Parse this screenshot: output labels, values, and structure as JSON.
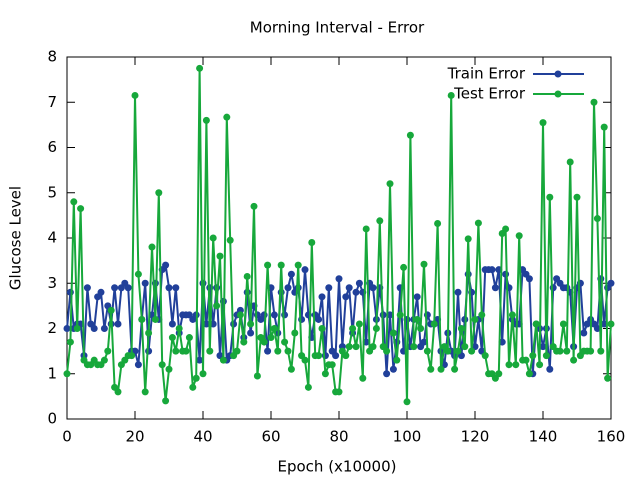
{
  "chart_data": {
    "type": "line",
    "title": "Morning Interval - Error",
    "xlabel": "Epoch (x10000)",
    "ylabel": "Glucose Level",
    "x": [
      0,
      1,
      2,
      3,
      4,
      5,
      6,
      7,
      8,
      9,
      10,
      11,
      12,
      13,
      14,
      15,
      16,
      17,
      18,
      19,
      20,
      21,
      22,
      23,
      24,
      25,
      26,
      27,
      28,
      29,
      30,
      31,
      32,
      33,
      34,
      35,
      36,
      37,
      38,
      39,
      40,
      41,
      42,
      43,
      44,
      45,
      46,
      47,
      48,
      49,
      50,
      51,
      52,
      53,
      54,
      55,
      56,
      57,
      58,
      59,
      60,
      61,
      62,
      63,
      64,
      65,
      66,
      67,
      68,
      69,
      70,
      71,
      72,
      73,
      74,
      75,
      76,
      77,
      78,
      79,
      80,
      81,
      82,
      83,
      84,
      85,
      86,
      87,
      88,
      89,
      90,
      91,
      92,
      93,
      94,
      95,
      96,
      97,
      98,
      99,
      100,
      101,
      102,
      103,
      104,
      105,
      106,
      107,
      108,
      109,
      110,
      111,
      112,
      113,
      114,
      115,
      116,
      117,
      118,
      119,
      120,
      121,
      122,
      123,
      124,
      125,
      126,
      127,
      128,
      129,
      130,
      131,
      132,
      133,
      134,
      135,
      136,
      137,
      138,
      139,
      140,
      141,
      142,
      143,
      144,
      145,
      146,
      147,
      148,
      149,
      150,
      151,
      152,
      153,
      154,
      155,
      156,
      157,
      158,
      159,
      160
    ],
    "series": [
      {
        "name": "Train Error",
        "color": "#21409a",
        "values": [
          2.0,
          2.8,
          2.0,
          2.1,
          2.1,
          1.4,
          2.9,
          2.1,
          2.0,
          2.7,
          2.8,
          2.0,
          2.5,
          2.1,
          2.9,
          2.1,
          2.9,
          3.0,
          2.9,
          1.5,
          1.5,
          1.2,
          2.2,
          3.0,
          1.5,
          2.3,
          3.0,
          2.2,
          3.3,
          3.4,
          2.9,
          2.1,
          2.9,
          1.9,
          2.3,
          2.3,
          2.3,
          2.2,
          2.3,
          1.3,
          3.0,
          2.1,
          2.9,
          2.1,
          2.9,
          1.4,
          2.6,
          1.3,
          1.4,
          2.1,
          2.3,
          2.4,
          1.8,
          2.8,
          1.9,
          2.5,
          2.3,
          2.2,
          2.3,
          1.5,
          2.9,
          2.3,
          1.9,
          2.8,
          2.3,
          2.9,
          3.2,
          2.8,
          2.9,
          2.2,
          3.3,
          2.3,
          1.8,
          2.3,
          2.2,
          2.7,
          1.4,
          2.9,
          1.5,
          1.4,
          3.1,
          1.6,
          2.7,
          2.9,
          1.9,
          2.8,
          3.0,
          2.8,
          1.7,
          3.0,
          2.9,
          2.2,
          2.9,
          2.3,
          1.0,
          2.3,
          1.1,
          1.7,
          2.9,
          1.5,
          2.2,
          1.6,
          2.2,
          2.7,
          1.6,
          1.7,
          2.3,
          2.1,
          2.1,
          2.2,
          1.5,
          1.2,
          1.9,
          1.5,
          1.4,
          2.8,
          1.4,
          2.2,
          3.2,
          2.8,
          1.6,
          2.2,
          1.5,
          3.3,
          3.3,
          3.3,
          2.9,
          3.3,
          1.7,
          3.2,
          2.9,
          2.2,
          2.1,
          2.1,
          3.3,
          3.2,
          3.1,
          1.0,
          2.1,
          2.0,
          1.6,
          2.0,
          1.1,
          2.9,
          3.1,
          3.0,
          2.9,
          2.9,
          2.8,
          1.6,
          2.9,
          3.0,
          1.9,
          2.1,
          2.2,
          2.1,
          2.0,
          3.1,
          2.1,
          2.9,
          3.0
        ]
      },
      {
        "name": "Test Error",
        "color": "#17a83b",
        "values": [
          1.0,
          1.7,
          4.8,
          2.0,
          4.65,
          1.3,
          1.2,
          1.2,
          1.3,
          1.2,
          1.2,
          1.3,
          1.5,
          2.4,
          0.7,
          0.6,
          1.2,
          1.3,
          1.4,
          1.4,
          7.15,
          3.2,
          2.2,
          0.6,
          1.9,
          3.8,
          2.2,
          5.0,
          1.2,
          0.4,
          1.1,
          1.8,
          1.5,
          2.0,
          1.5,
          1.5,
          1.8,
          0.7,
          0.9,
          7.75,
          1.0,
          6.6,
          1.5,
          4.0,
          2.5,
          3.6,
          1.3,
          6.67,
          3.95,
          1.4,
          1.5,
          2.3,
          1.7,
          3.15,
          2.1,
          4.7,
          0.95,
          1.8,
          1.7,
          3.4,
          1.8,
          2.0,
          1.5,
          3.4,
          1.7,
          1.5,
          1.1,
          1.9,
          3.4,
          1.4,
          1.3,
          0.7,
          3.9,
          1.4,
          1.4,
          2.0,
          1.0,
          1.2,
          1.2,
          0.6,
          0.6,
          1.5,
          1.4,
          1.6,
          2.0,
          1.6,
          2.1,
          0.9,
          4.2,
          1.5,
          1.6,
          2.0,
          4.38,
          1.6,
          1.5,
          5.2,
          1.9,
          1.3,
          2.3,
          3.35,
          0.38,
          6.27,
          1.6,
          2.2,
          2.0,
          3.42,
          1.5,
          1.1,
          2.1,
          4.32,
          1.1,
          1.6,
          1.5,
          7.15,
          1.1,
          1.5,
          2.0,
          1.6,
          3.98,
          1.5,
          2.2,
          4.33,
          2.3,
          1.4,
          1.0,
          1.0,
          0.9,
          1.0,
          4.1,
          4.2,
          1.2,
          2.3,
          1.2,
          4.05,
          1.3,
          1.3,
          1.0,
          1.4,
          2.1,
          1.2,
          6.55,
          1.4,
          4.9,
          1.6,
          1.5,
          1.5,
          2.1,
          1.5,
          5.68,
          1.3,
          4.9,
          1.4,
          1.5,
          1.5,
          1.5,
          7.0,
          4.43,
          1.5,
          6.45,
          0.9,
          2.1
        ]
      }
    ],
    "xlim": [
      0,
      160
    ],
    "xticks": [
      0,
      20,
      40,
      60,
      80,
      100,
      120,
      140,
      160
    ],
    "ylim": [
      0,
      8
    ],
    "yticks": [
      0,
      1,
      2,
      3,
      4,
      5,
      6,
      7,
      8
    ],
    "legend": "top-right"
  }
}
